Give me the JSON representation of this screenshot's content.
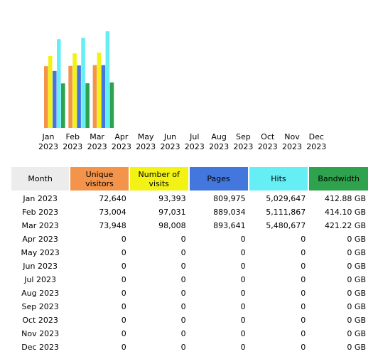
{
  "chart_data": {
    "type": "bar",
    "categories": [
      "Jan\n2023",
      "Feb\n2023",
      "Mar\n2023",
      "Apr\n2023",
      "May\n2023",
      "Jun\n2023",
      "Jul\n2023",
      "Aug\n2023",
      "Sep\n2023",
      "Oct\n2023",
      "Nov\n2023",
      "Dec\n2023"
    ],
    "month_labels": [
      [
        "Jan",
        "2023"
      ],
      [
        "Feb",
        "2023"
      ],
      [
        "Mar",
        "2023"
      ],
      [
        "Apr",
        "2023"
      ],
      [
        "May",
        "2023"
      ],
      [
        "Jun",
        "2023"
      ],
      [
        "Jul",
        "2023"
      ],
      [
        "Aug",
        "2023"
      ],
      [
        "Sep",
        "2023"
      ],
      [
        "Oct",
        "2023"
      ],
      [
        "Nov",
        "2023"
      ],
      [
        "Dec",
        "2023"
      ]
    ],
    "series": [
      {
        "name": "Unique visitors",
        "color": "#f3944a",
        "values": [
          72640,
          73004,
          73948,
          0,
          0,
          0,
          0,
          0,
          0,
          0,
          0,
          0
        ]
      },
      {
        "name": "Number of visits",
        "color": "#f2f214",
        "values": [
          93393,
          97031,
          98008,
          0,
          0,
          0,
          0,
          0,
          0,
          0,
          0,
          0
        ]
      },
      {
        "name": "Pages",
        "color": "#4477dd",
        "values": [
          809975,
          889034,
          893641,
          0,
          0,
          0,
          0,
          0,
          0,
          0,
          0,
          0
        ]
      },
      {
        "name": "Hits",
        "color": "#66eef5",
        "values": [
          5029647,
          5111867,
          5480677,
          0,
          0,
          0,
          0,
          0,
          0,
          0,
          0,
          0
        ]
      },
      {
        "name": "Bandwidth",
        "color": "#2ea24d",
        "values": [
          412.88,
          414.1,
          421.22,
          0,
          0,
          0,
          0,
          0,
          0,
          0,
          0,
          0
        ]
      }
    ]
  },
  "table": {
    "headers": {
      "month": "Month",
      "unique_visitors": "Unique visitors",
      "visits": "Number of visits",
      "pages": "Pages",
      "hits": "Hits",
      "bandwidth": "Bandwidth"
    },
    "rows": [
      {
        "month": "Jan 2023",
        "unique": "72,640",
        "visits": "93,393",
        "pages": "809,975",
        "hits": "5,029,647",
        "bandwidth": "412.88 GB"
      },
      {
        "month": "Feb 2023",
        "unique": "73,004",
        "visits": "97,031",
        "pages": "889,034",
        "hits": "5,111,867",
        "bandwidth": "414.10 GB"
      },
      {
        "month": "Mar 2023",
        "unique": "73,948",
        "visits": "98,008",
        "pages": "893,641",
        "hits": "5,480,677",
        "bandwidth": "421.22 GB"
      },
      {
        "month": "Apr 2023",
        "unique": "0",
        "visits": "0",
        "pages": "0",
        "hits": "0",
        "bandwidth": "0  GB"
      },
      {
        "month": "May 2023",
        "unique": "0",
        "visits": "0",
        "pages": "0",
        "hits": "0",
        "bandwidth": "0  GB"
      },
      {
        "month": "Jun 2023",
        "unique": "0",
        "visits": "0",
        "pages": "0",
        "hits": "0",
        "bandwidth": "0  GB"
      },
      {
        "month": "Jul 2023",
        "unique": "0",
        "visits": "0",
        "pages": "0",
        "hits": "0",
        "bandwidth": "0  GB"
      },
      {
        "month": "Aug 2023",
        "unique": "0",
        "visits": "0",
        "pages": "0",
        "hits": "0",
        "bandwidth": "0  GB"
      },
      {
        "month": "Sep 2023",
        "unique": "0",
        "visits": "0",
        "pages": "0",
        "hits": "0",
        "bandwidth": "0  GB"
      },
      {
        "month": "Oct 2023",
        "unique": "0",
        "visits": "0",
        "pages": "0",
        "hits": "0",
        "bandwidth": "0  GB"
      },
      {
        "month": "Nov 2023",
        "unique": "0",
        "visits": "0",
        "pages": "0",
        "hits": "0",
        "bandwidth": "0  GB"
      },
      {
        "month": "Dec 2023",
        "unique": "0",
        "visits": "0",
        "pages": "0",
        "hits": "0",
        "bandwidth": "0  GB"
      }
    ]
  }
}
